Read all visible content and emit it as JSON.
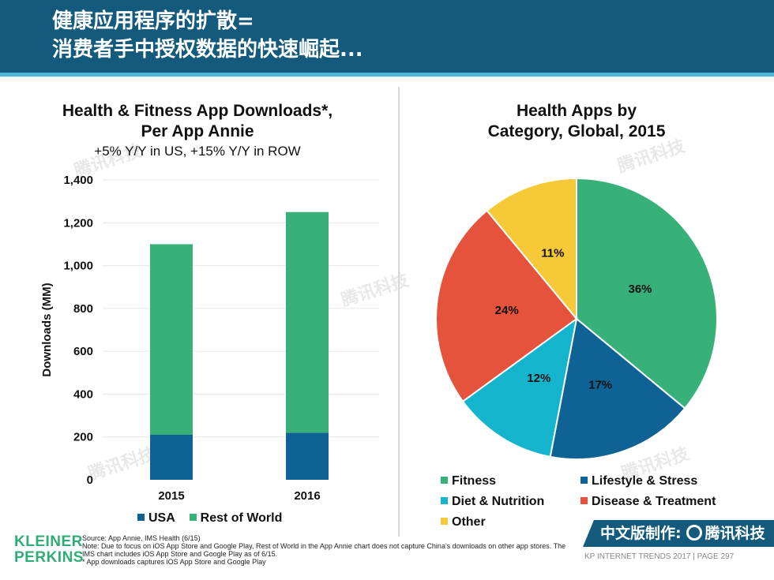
{
  "header": {
    "line1": "健康应用程序的扩散=",
    "line2": "消费者手中授权数据的快速崛起..."
  },
  "colors": {
    "header_bg": "#145a7c",
    "accent_teal": "#4fb8d6",
    "green": "#38b07a",
    "dark_blue": "#0e6394",
    "cyan": "#14b4cc",
    "red": "#e5533d",
    "yellow": "#f6c939"
  },
  "chart_data": [
    {
      "type": "bar",
      "stacked": true,
      "title_line1": "Health & Fitness App Downloads*,",
      "title_line2": "Per App Annie",
      "subtitle": "+5% Y/Y in US, +15% Y/Y in ROW",
      "ylabel": "Downloads (MM)",
      "xlabel": "",
      "categories": [
        "2015",
        "2016"
      ],
      "series": [
        {
          "name": "USA",
          "color": "#0e6394",
          "values": [
            210,
            220
          ]
        },
        {
          "name": "Rest of World",
          "color": "#38b07a",
          "values": [
            890,
            1030
          ]
        }
      ],
      "ylim": [
        0,
        1400
      ],
      "yticks": [
        0,
        200,
        400,
        600,
        800,
        1000,
        1200,
        1400
      ],
      "ytick_labels": [
        "0",
        "200",
        "400",
        "600",
        "800",
        "1,000",
        "1,200",
        "1,400"
      ],
      "grid": true,
      "legend": "bottom"
    },
    {
      "type": "pie",
      "title_line1": "Health Apps by",
      "title_line2": "Category, Global, 2015",
      "slices": [
        {
          "label": "Fitness",
          "value": 36,
          "display": "36%",
          "color": "#38b07a"
        },
        {
          "label": "Lifestyle & Stress",
          "value": 17,
          "display": "17%",
          "color": "#0e6394"
        },
        {
          "label": "Diet & Nutrition",
          "value": 12,
          "display": "12%",
          "color": "#14b4cc"
        },
        {
          "label": "Disease & Treatment",
          "value": 24,
          "display": "24%",
          "color": "#e5533d"
        },
        {
          "label": "Other",
          "value": 11,
          "display": "11%",
          "color": "#f6c939"
        }
      ],
      "legend": "bottom"
    }
  ],
  "watermark": "腾讯科技",
  "brand": {
    "line1": "KLEINER",
    "line2": "PERKINS"
  },
  "source": {
    "line1": "Source: App Annie, IMS Health (6/15)",
    "line2": "Note: Due to focus on iOS App Store and Google Play, Rest of World in the App Annie chart does not capture China's downloads on other app stores. The IMS chart includes iOS App Store and Google Play as of 6/15.",
    "line3": "* App downloads captures iOS App Store and Google Play"
  },
  "badge": {
    "prefix": "中文版制作:",
    "name": "腾讯科技"
  },
  "footer": "KP INTERNET TRENDS 2017  |  PAGE 297"
}
